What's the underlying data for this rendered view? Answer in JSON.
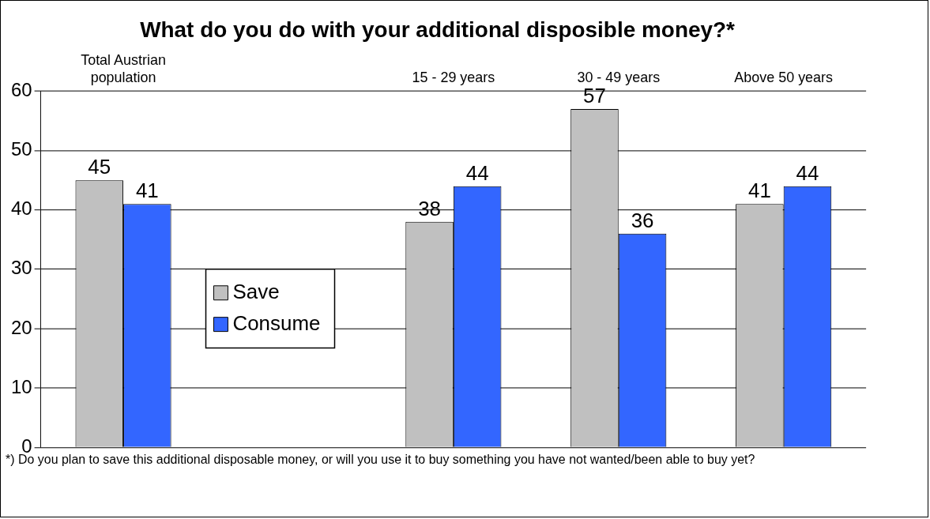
{
  "chart_data": {
    "type": "bar",
    "title": "What do you do with your additional disposible money?*",
    "categories": [
      "Total Austrian population",
      null,
      "15 - 29 years",
      "30 - 49 years",
      "Above 50 years"
    ],
    "series": [
      {
        "name": "Save",
        "color": "#c0c0c0",
        "values": [
          45,
          null,
          38,
          57,
          41
        ]
      },
      {
        "name": "Consume",
        "color": "#3366ff",
        "values": [
          41,
          null,
          44,
          36,
          44
        ]
      }
    ],
    "ylim": [
      0,
      60
    ],
    "yticks": [
      0,
      10,
      20,
      30,
      40,
      50,
      60
    ],
    "grid": "y",
    "legend": "center left",
    "data_labels": true,
    "annotations": [
      "*) Do you plan to save this additional disposable money, or will you use it to buy something you have not wanted/been able to buy yet?"
    ]
  }
}
